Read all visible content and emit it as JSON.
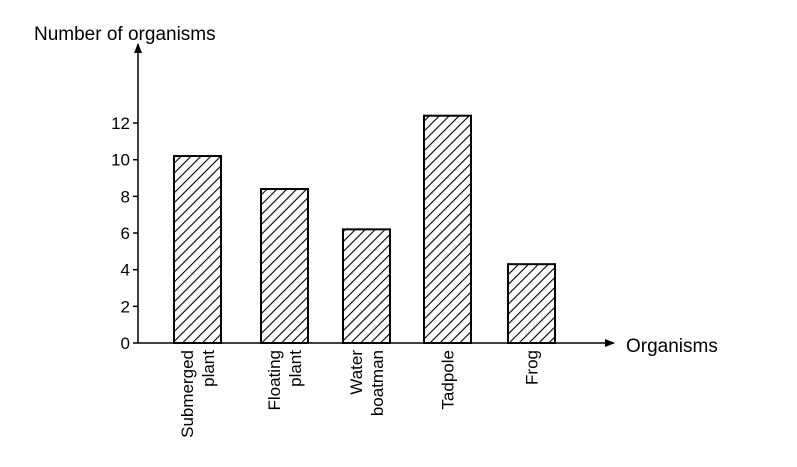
{
  "chart_data": {
    "type": "bar",
    "ylabel": "Number of organisms",
    "xlabel": "Organisms",
    "categories": [
      [
        "Submerged",
        "plant"
      ],
      [
        "Floating",
        "plant"
      ],
      [
        "Water",
        "boatman"
      ],
      [
        "Tadpole"
      ],
      [
        "Frog"
      ]
    ],
    "values": [
      10.2,
      8.4,
      6.2,
      12.4,
      4.3
    ],
    "yticks": [
      "0",
      "2",
      "4",
      "6",
      "8",
      "10",
      "12"
    ],
    "ylim": [
      0,
      13
    ],
    "bar_fill": "diagonal-hatch",
    "colors": {
      "stroke": "#000000",
      "background": "#ffffff"
    }
  }
}
